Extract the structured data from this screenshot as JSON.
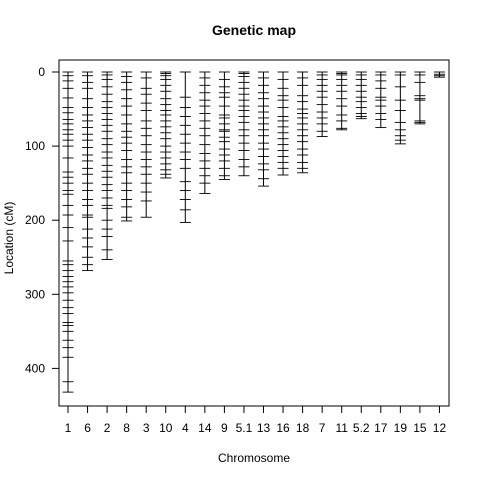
{
  "chart_data": {
    "type": "genetic-map",
    "title": "Genetic map",
    "xlabel": "Chromosome",
    "ylabel": "Location (cM)",
    "ylim": [
      0,
      455
    ],
    "y_reversed": true,
    "y_ticks": [
      0,
      100,
      200,
      300,
      400
    ],
    "grid": false,
    "legend": "none",
    "color": "#000000",
    "categories": [
      "1",
      "6",
      "2",
      "8",
      "3",
      "10",
      "4",
      "14",
      "9",
      "5.1",
      "13",
      "16",
      "18",
      "7",
      "11",
      "5.2",
      "17",
      "19",
      "15",
      "12"
    ],
    "chromosomes": [
      {
        "name": "1",
        "length": 432,
        "markers": [
          0,
          5,
          12,
          22,
          35,
          48,
          55,
          64,
          70,
          78,
          84,
          92,
          100,
          116,
          135,
          142,
          150,
          160,
          165,
          180,
          193,
          210,
          228,
          255,
          260,
          268,
          276,
          283,
          290,
          298,
          308,
          318,
          326,
          338,
          342,
          350,
          362,
          372,
          385,
          418,
          432
        ]
      },
      {
        "name": "6",
        "length": 268,
        "markers": [
          0,
          5,
          14,
          22,
          36,
          48,
          58,
          66,
          75,
          84,
          92,
          102,
          112,
          120,
          130,
          138,
          150,
          160,
          172,
          180,
          193,
          196,
          212,
          224,
          236,
          250,
          260,
          268
        ]
      },
      {
        "name": "2",
        "length": 253,
        "markers": [
          0,
          4,
          10,
          20,
          30,
          40,
          48,
          56,
          64,
          72,
          80,
          90,
          98,
          108,
          116,
          126,
          134,
          142,
          152,
          160,
          170,
          180,
          184,
          200,
          212,
          222,
          240,
          253
        ]
      },
      {
        "name": "8",
        "length": 201,
        "markers": [
          0,
          6,
          14,
          24,
          36,
          46,
          58,
          70,
          80,
          88,
          96,
          106,
          118,
          128,
          136,
          150,
          160,
          172,
          182,
          196,
          201
        ]
      },
      {
        "name": "3",
        "length": 196,
        "markers": [
          0,
          8,
          22,
          30,
          42,
          52,
          66,
          76,
          86,
          98,
          108,
          118,
          128,
          138,
          150,
          162,
          174,
          196
        ]
      },
      {
        "name": "10",
        "length": 143,
        "markers": [
          0,
          2,
          5,
          10,
          18,
          26,
          36,
          44,
          52,
          58,
          66,
          74,
          82,
          90,
          100,
          108,
          116,
          124,
          132,
          138,
          143
        ]
      },
      {
        "name": "4",
        "length": 203,
        "markers": [
          0,
          34,
          48,
          60,
          72,
          84,
          96,
          108,
          118,
          130,
          148,
          160,
          172,
          186,
          203
        ]
      },
      {
        "name": "14",
        "length": 164,
        "markers": [
          0,
          8,
          18,
          28,
          38,
          46,
          56,
          66,
          76,
          86,
          98,
          110,
          120,
          130,
          140,
          150,
          164
        ]
      },
      {
        "name": "9",
        "length": 145,
        "markers": [
          0,
          10,
          20,
          28,
          34,
          46,
          58,
          62,
          70,
          78,
          80,
          88,
          94,
          104,
          112,
          120,
          130,
          140,
          145
        ]
      },
      {
        "name": "5.1",
        "length": 140,
        "markers": [
          0,
          2,
          6,
          14,
          22,
          30,
          38,
          46,
          52,
          60,
          68,
          78,
          86,
          96,
          106,
          118,
          128,
          140
        ]
      },
      {
        "name": "13",
        "length": 154,
        "markers": [
          0,
          8,
          18,
          28,
          36,
          46,
          54,
          62,
          70,
          78,
          86,
          96,
          104,
          114,
          124,
          132,
          144,
          154
        ]
      },
      {
        "name": "16",
        "length": 139,
        "markers": [
          0,
          10,
          22,
          32,
          38,
          48,
          60,
          66,
          74,
          82,
          90,
          98,
          106,
          114,
          122,
          130,
          139
        ]
      },
      {
        "name": "18",
        "length": 136,
        "markers": [
          0,
          8,
          18,
          32,
          40,
          50,
          56,
          62,
          70,
          78,
          86,
          94,
          104,
          112,
          122,
          130,
          136
        ]
      },
      {
        "name": "7",
        "length": 87,
        "markers": [
          0,
          4,
          10,
          18,
          26,
          34,
          44,
          54,
          62,
          70,
          80,
          87
        ]
      },
      {
        "name": "11",
        "length": 78,
        "markers": [
          0,
          2,
          4,
          10,
          18,
          26,
          36,
          46,
          58,
          66,
          76,
          78
        ]
      },
      {
        "name": "5.2",
        "length": 63,
        "markers": [
          0,
          4,
          10,
          18,
          26,
          34,
          40,
          48,
          56,
          60,
          63
        ]
      },
      {
        "name": "17",
        "length": 75,
        "markers": [
          0,
          4,
          12,
          22,
          34,
          38,
          46,
          56,
          64,
          75
        ]
      },
      {
        "name": "19",
        "length": 97,
        "markers": [
          0,
          4,
          20,
          38,
          52,
          68,
          78,
          86,
          92,
          97
        ]
      },
      {
        "name": "15",
        "length": 70,
        "markers": [
          0,
          4,
          14,
          32,
          36,
          38,
          66,
          68,
          70
        ]
      },
      {
        "name": "12",
        "length": 7,
        "markers": [
          0,
          3,
          5,
          7
        ]
      }
    ]
  }
}
